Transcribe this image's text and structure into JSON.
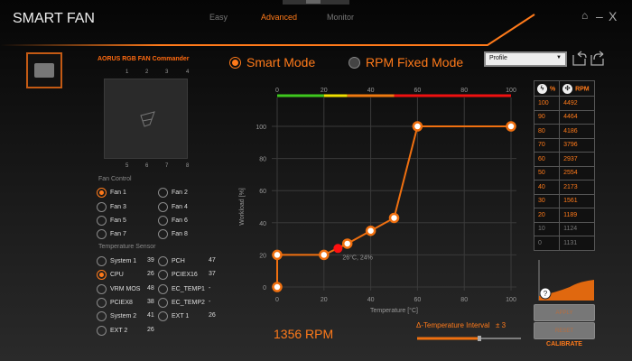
{
  "app": {
    "title": "SMART FAN"
  },
  "tabs": [
    {
      "label": "Easy"
    },
    {
      "label": "Advanced",
      "active": true
    },
    {
      "label": "Monitor"
    }
  ],
  "window": {
    "home_icon": "home-icon",
    "minimize": "–",
    "close": "X"
  },
  "colors": {
    "accent": "#ff7a1a",
    "current_point": "#ff1010"
  },
  "rgb": {
    "title": "AORUS RGB FAN Commander",
    "ports_top": [
      "1",
      "2",
      "3",
      "4"
    ],
    "ports_bottom": [
      "5",
      "6",
      "7",
      "8"
    ]
  },
  "fan_control": {
    "label": "Fan Control",
    "fans": [
      {
        "label": "Fan 1",
        "selected": true
      },
      {
        "label": "Fan 2"
      },
      {
        "label": "Fan 3"
      },
      {
        "label": "Fan 4"
      },
      {
        "label": "Fan 5"
      },
      {
        "label": "Fan 6"
      },
      {
        "label": "Fan 7"
      },
      {
        "label": "Fan 8"
      }
    ]
  },
  "temp_sensor": {
    "label": "Temperature Sensor",
    "sensors": [
      {
        "label": "System 1",
        "value": "39"
      },
      {
        "label": "PCH",
        "value": "47"
      },
      {
        "label": "CPU",
        "value": "26",
        "selected": true
      },
      {
        "label": "PCIEX16",
        "value": "37"
      },
      {
        "label": "VRM MOS",
        "value": "48"
      },
      {
        "label": "EC_TEMP1",
        "value": "-"
      },
      {
        "label": "PCIEX8",
        "value": "38"
      },
      {
        "label": "EC_TEMP2",
        "value": "-"
      },
      {
        "label": "System 2",
        "value": "41"
      },
      {
        "label": "EXT 1",
        "value": "26"
      },
      {
        "label": "EXT 2",
        "value": "26"
      }
    ]
  },
  "modes": {
    "smart": "Smart Mode",
    "fixed": "RPM Fixed Mode",
    "selected": "smart"
  },
  "profile": {
    "value": "Profile"
  },
  "chart_data": {
    "type": "line",
    "xlabel": "Temperature [°C]",
    "ylabel": "Workload [%]",
    "xlim": [
      0,
      100
    ],
    "ylim": [
      0,
      100
    ],
    "xticks": [
      "0",
      "20",
      "40",
      "60",
      "80",
      "100"
    ],
    "yticks": [
      "0",
      "20",
      "40",
      "60",
      "80",
      "100"
    ],
    "top_ticks": [
      "0",
      "20",
      "40",
      "60",
      "80",
      "100"
    ],
    "grid": true,
    "color_bar": [
      {
        "from": 0,
        "to": 20,
        "color": "#3ec81e"
      },
      {
        "from": 20,
        "to": 30,
        "color": "#f0e000"
      },
      {
        "from": 30,
        "to": 50,
        "color": "#f07a10"
      },
      {
        "from": 50,
        "to": 100,
        "color": "#f01010"
      }
    ],
    "points": [
      {
        "x": 0,
        "y": 0
      },
      {
        "x": 0,
        "y": 20
      },
      {
        "x": 20,
        "y": 20
      },
      {
        "x": 30,
        "y": 27
      },
      {
        "x": 40,
        "y": 35
      },
      {
        "x": 50,
        "y": 43
      },
      {
        "x": 60,
        "y": 100
      },
      {
        "x": 100,
        "y": 100
      }
    ],
    "current": {
      "x": 26,
      "y": 24,
      "label": "26°C, 24%"
    }
  },
  "rpm_readout": "1356  RPM",
  "interval": {
    "label": "Δ-Temperature Interval",
    "value": "± 3",
    "fraction": 0.6
  },
  "rpm_table": {
    "col_pct": "%",
    "col_rpm": "RPM",
    "rows": [
      {
        "pct": "100",
        "rpm": "4492"
      },
      {
        "pct": "90",
        "rpm": "4464"
      },
      {
        "pct": "80",
        "rpm": "4186"
      },
      {
        "pct": "70",
        "rpm": "3796"
      },
      {
        "pct": "60",
        "rpm": "2937"
      },
      {
        "pct": "50",
        "rpm": "2554"
      },
      {
        "pct": "40",
        "rpm": "2173"
      },
      {
        "pct": "30",
        "rpm": "1561"
      },
      {
        "pct": "20",
        "rpm": "1189"
      },
      {
        "pct": "10",
        "rpm": "1124",
        "dim": true
      },
      {
        "pct": "0",
        "rpm": "1131",
        "dim": true
      }
    ]
  },
  "buttons": {
    "apply": "APPLY",
    "reset": "RESET",
    "calibrate": "CALIBRATE",
    "help": "?"
  }
}
